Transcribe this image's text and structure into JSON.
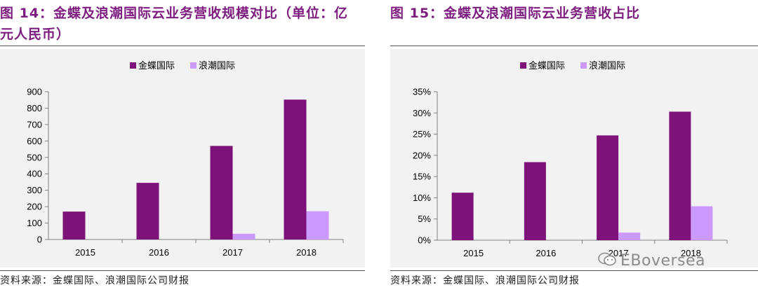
{
  "left_panel": {
    "title": "图 14：金蝶及浪潮国际云业务营收规模对比（单位：亿元人民币）",
    "source": "资料来源：金蝶国际、浪潮国际公司财报"
  },
  "right_panel": {
    "title": "图 15：金蝶及浪潮国际云业务营收占比",
    "source": "资料来源：金蝶国际、浪潮国际公司财报"
  },
  "watermark": {
    "text": "EBoversea",
    "icon": "wechat-icon",
    "color": "#8a8a8a"
  },
  "colors": {
    "kingdee": "#7d1278",
    "inspur": "#cc99ff",
    "title": "#7d1d7f"
  },
  "chart_data": [
    {
      "type": "bar",
      "categories": [
        "2015",
        "2016",
        "2017",
        "2018"
      ],
      "series": [
        {
          "name": "金蝶国际",
          "values": [
            170,
            345,
            570,
            852
          ]
        },
        {
          "name": "浪潮国际",
          "values": [
            0,
            0,
            35,
            172
          ]
        }
      ],
      "ylim": [
        0,
        900
      ],
      "yticks": [
        0,
        100,
        200,
        300,
        400,
        500,
        600,
        700,
        800,
        900
      ],
      "ytick_labels": [
        "0",
        "100",
        "200",
        "300",
        "400",
        "500",
        "600",
        "700",
        "800",
        "900"
      ],
      "legend": "top-center",
      "grid": false
    },
    {
      "type": "bar",
      "categories": [
        "2015",
        "2016",
        "2017",
        "2018"
      ],
      "series": [
        {
          "name": "金蝶国际",
          "values": [
            0.112,
            0.184,
            0.247,
            0.303
          ]
        },
        {
          "name": "浪潮国际",
          "values": [
            0,
            0,
            0.018,
            0.08
          ]
        }
      ],
      "ylim": [
        0,
        0.35
      ],
      "yticks": [
        0,
        0.05,
        0.1,
        0.15,
        0.2,
        0.25,
        0.3,
        0.35
      ],
      "ytick_labels": [
        "0%",
        "5%",
        "10%",
        "15%",
        "20%",
        "25%",
        "30%",
        "35%"
      ],
      "legend": "top-center",
      "grid": false
    }
  ]
}
